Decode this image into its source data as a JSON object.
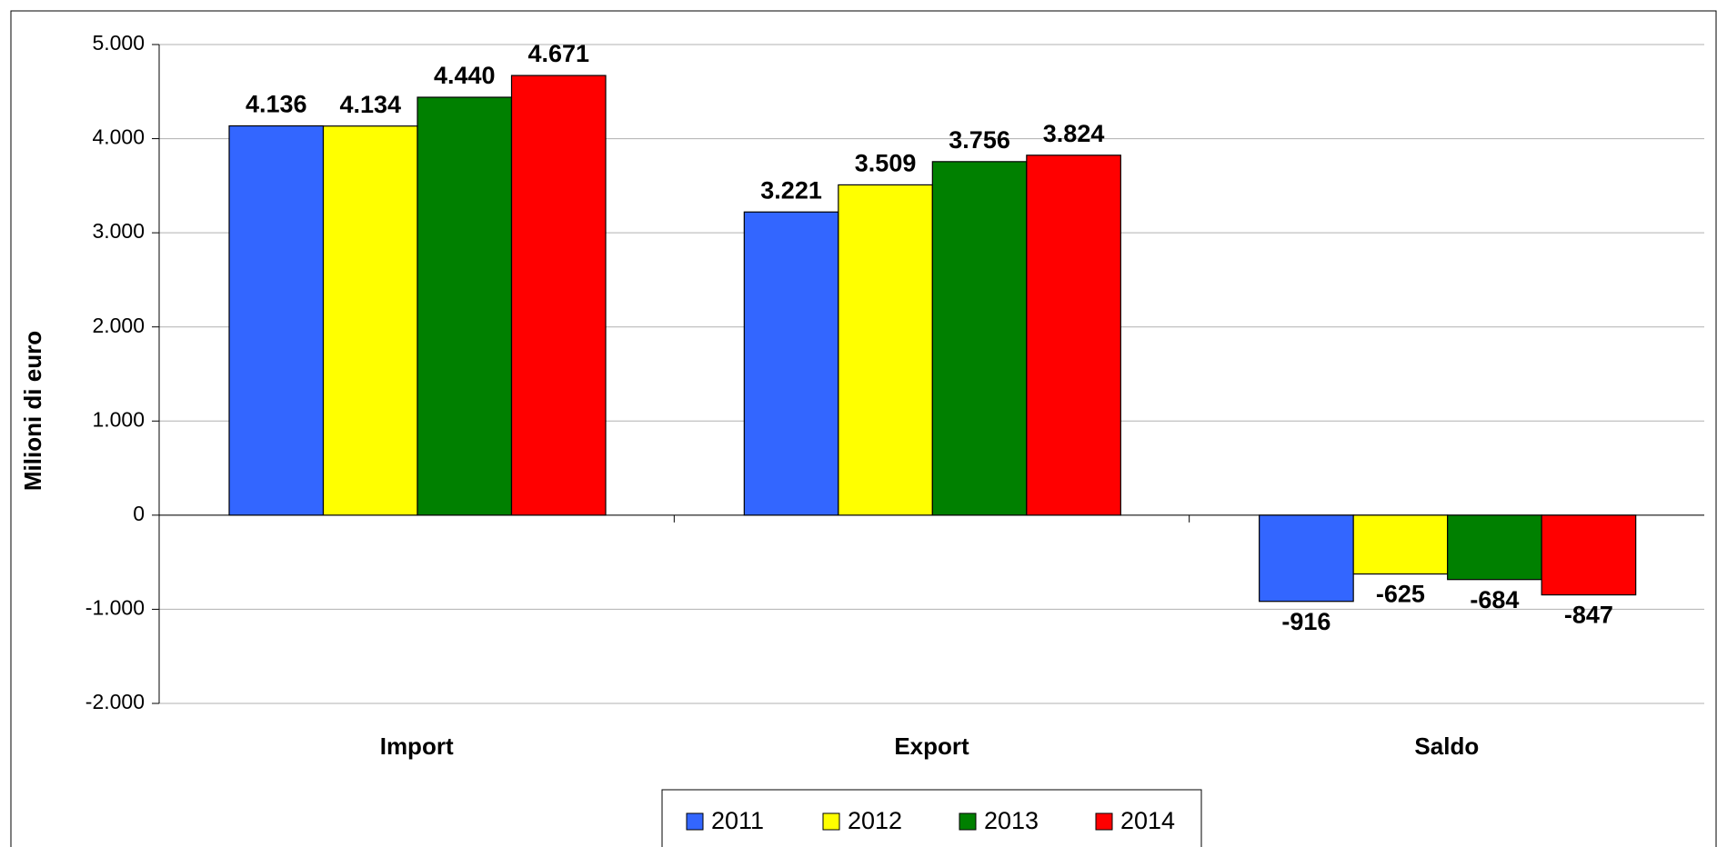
{
  "chart_data": {
    "type": "bar",
    "ylabel": "Milioni di euro",
    "categories": [
      "Import",
      "Export",
      "Saldo"
    ],
    "series": [
      {
        "name": "2011",
        "color": "#3366ff",
        "values": [
          4136,
          3221,
          -916
        ],
        "value_labels": [
          "4.136",
          "3.221",
          "-916"
        ]
      },
      {
        "name": "2012",
        "color": "#ffff00",
        "values": [
          4134,
          3509,
          -625
        ],
        "value_labels": [
          "4.134",
          "3.509",
          "-625"
        ]
      },
      {
        "name": "2013",
        "color": "#008000",
        "values": [
          4440,
          3756,
          -684
        ],
        "value_labels": [
          "4.440",
          "3.756",
          "-684"
        ]
      },
      {
        "name": "2014",
        "color": "#ff0000",
        "values": [
          4671,
          3824,
          -847
        ],
        "value_labels": [
          "4.671",
          "3.824",
          "-847"
        ]
      }
    ],
    "ylim": [
      -2000,
      5000
    ],
    "yticks": [
      {
        "value": -2000,
        "label": "-2.000"
      },
      {
        "value": -1000,
        "label": "-1.000"
      },
      0,
      {
        "value": 1000,
        "label": "1.000"
      },
      {
        "value": 2000,
        "label": "2.000"
      },
      {
        "value": 3000,
        "label": "3.000"
      },
      {
        "value": 4000,
        "label": "4.000"
      },
      {
        "value": 5000,
        "label": "5.000"
      }
    ],
    "grid": true,
    "legend": "bottom"
  }
}
